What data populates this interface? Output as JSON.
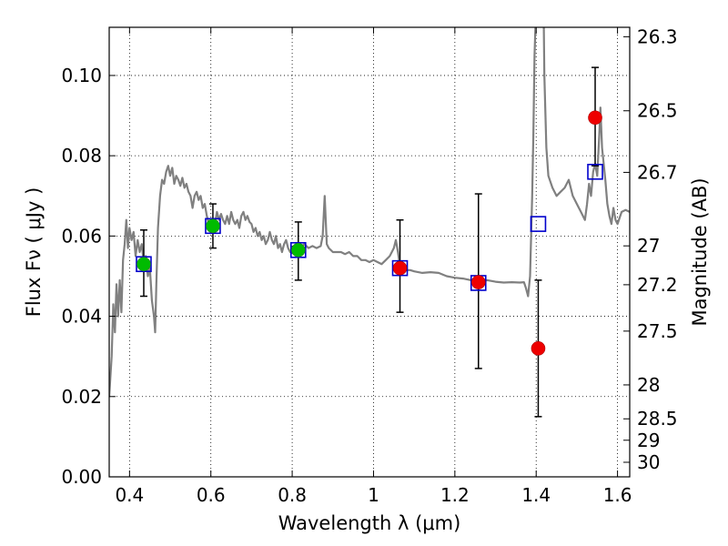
{
  "chart_data": {
    "type": "scatter",
    "xlabel": "Wavelength  λ (μm)",
    "ylabel": "Flux  Fν  ( μJy )",
    "y2label": "Magnitude (AB)",
    "xlim": [
      0.35,
      1.63
    ],
    "ylim": [
      0.0,
      0.112
    ],
    "grid": true,
    "x_ticks": [
      "0.4",
      "0.6",
      "0.8",
      "1",
      "1.2",
      "1.4",
      "1.6"
    ],
    "y_ticks": [
      "0.00",
      "0.02",
      "0.04",
      "0.06",
      "0.08",
      "0.10"
    ],
    "mag_ticks": [
      "26.3",
      "26.5",
      "26.7",
      "27",
      "27.2",
      "27.5",
      "28",
      "28.5",
      "29",
      "30"
    ],
    "model_spectrum": {
      "color": "#808080",
      "points": [
        [
          0.35,
          0.02
        ],
        [
          0.356,
          0.03
        ],
        [
          0.36,
          0.043
        ],
        [
          0.364,
          0.036
        ],
        [
          0.368,
          0.048
        ],
        [
          0.372,
          0.04
        ],
        [
          0.376,
          0.049
        ],
        [
          0.38,
          0.041
        ],
        [
          0.384,
          0.054
        ],
        [
          0.388,
          0.058
        ],
        [
          0.392,
          0.064
        ],
        [
          0.396,
          0.057
        ],
        [
          0.4,
          0.062
        ],
        [
          0.405,
          0.059
        ],
        [
          0.41,
          0.061
        ],
        [
          0.415,
          0.055
        ],
        [
          0.42,
          0.059
        ],
        [
          0.425,
          0.056
        ],
        [
          0.43,
          0.058
        ],
        [
          0.435,
          0.053
        ],
        [
          0.44,
          0.055
        ],
        [
          0.445,
          0.05
        ],
        [
          0.45,
          0.052
        ],
        [
          0.455,
          0.044
        ],
        [
          0.46,
          0.04
        ],
        [
          0.463,
          0.036
        ],
        [
          0.466,
          0.048
        ],
        [
          0.47,
          0.062
        ],
        [
          0.475,
          0.07
        ],
        [
          0.48,
          0.074
        ],
        [
          0.485,
          0.073
        ],
        [
          0.49,
          0.076
        ],
        [
          0.495,
          0.0775
        ],
        [
          0.5,
          0.075
        ],
        [
          0.505,
          0.077
        ],
        [
          0.51,
          0.073
        ],
        [
          0.515,
          0.075
        ],
        [
          0.52,
          0.074
        ],
        [
          0.525,
          0.0725
        ],
        [
          0.53,
          0.0745
        ],
        [
          0.535,
          0.072
        ],
        [
          0.54,
          0.073
        ],
        [
          0.545,
          0.071
        ],
        [
          0.55,
          0.07
        ],
        [
          0.555,
          0.067
        ],
        [
          0.56,
          0.07
        ],
        [
          0.565,
          0.071
        ],
        [
          0.57,
          0.069
        ],
        [
          0.575,
          0.07
        ],
        [
          0.58,
          0.067
        ],
        [
          0.585,
          0.068
        ],
        [
          0.59,
          0.065
        ],
        [
          0.595,
          0.063
        ],
        [
          0.6,
          0.062
        ],
        [
          0.605,
          0.064
        ],
        [
          0.61,
          0.063
        ],
        [
          0.615,
          0.066
        ],
        [
          0.62,
          0.064
        ],
        [
          0.625,
          0.0655
        ],
        [
          0.63,
          0.064
        ],
        [
          0.635,
          0.063
        ],
        [
          0.64,
          0.065
        ],
        [
          0.645,
          0.063
        ],
        [
          0.65,
          0.066
        ],
        [
          0.655,
          0.064
        ],
        [
          0.66,
          0.063
        ],
        [
          0.665,
          0.064
        ],
        [
          0.67,
          0.062
        ],
        [
          0.675,
          0.065
        ],
        [
          0.68,
          0.066
        ],
        [
          0.685,
          0.064
        ],
        [
          0.69,
          0.065
        ],
        [
          0.695,
          0.0635
        ],
        [
          0.7,
          0.063
        ],
        [
          0.705,
          0.061
        ],
        [
          0.71,
          0.062
        ],
        [
          0.715,
          0.06
        ],
        [
          0.72,
          0.061
        ],
        [
          0.725,
          0.059
        ],
        [
          0.73,
          0.06
        ],
        [
          0.735,
          0.058
        ],
        [
          0.74,
          0.059
        ],
        [
          0.745,
          0.061
        ],
        [
          0.75,
          0.059
        ],
        [
          0.755,
          0.058
        ],
        [
          0.76,
          0.06
        ],
        [
          0.765,
          0.057
        ],
        [
          0.77,
          0.058
        ],
        [
          0.775,
          0.056
        ],
        [
          0.78,
          0.058
        ],
        [
          0.785,
          0.059
        ],
        [
          0.79,
          0.057
        ],
        [
          0.795,
          0.056
        ],
        [
          0.8,
          0.057
        ],
        [
          0.81,
          0.058
        ],
        [
          0.82,
          0.057
        ],
        [
          0.83,
          0.058
        ],
        [
          0.84,
          0.057
        ],
        [
          0.85,
          0.0575
        ],
        [
          0.86,
          0.057
        ],
        [
          0.87,
          0.0575
        ],
        [
          0.875,
          0.06
        ],
        [
          0.88,
          0.07
        ],
        [
          0.885,
          0.058
        ],
        [
          0.89,
          0.057
        ],
        [
          0.9,
          0.056
        ],
        [
          0.91,
          0.056
        ],
        [
          0.92,
          0.056
        ],
        [
          0.93,
          0.0555
        ],
        [
          0.94,
          0.056
        ],
        [
          0.95,
          0.055
        ],
        [
          0.96,
          0.055
        ],
        [
          0.97,
          0.054
        ],
        [
          0.98,
          0.054
        ],
        [
          0.99,
          0.0535
        ],
        [
          1.0,
          0.054
        ],
        [
          1.01,
          0.0535
        ],
        [
          1.02,
          0.053
        ],
        [
          1.03,
          0.054
        ],
        [
          1.04,
          0.055
        ],
        [
          1.05,
          0.057
        ],
        [
          1.055,
          0.059
        ],
        [
          1.06,
          0.056
        ],
        [
          1.065,
          0.0525
        ],
        [
          1.07,
          0.0515
        ],
        [
          1.08,
          0.0515
        ],
        [
          1.09,
          0.0515
        ],
        [
          1.1,
          0.0512
        ],
        [
          1.12,
          0.0508
        ],
        [
          1.14,
          0.051
        ],
        [
          1.16,
          0.0508
        ],
        [
          1.18,
          0.05
        ],
        [
          1.2,
          0.0496
        ],
        [
          1.22,
          0.0494
        ],
        [
          1.24,
          0.049
        ],
        [
          1.26,
          0.0488
        ],
        [
          1.28,
          0.049
        ],
        [
          1.3,
          0.0486
        ],
        [
          1.32,
          0.0484
        ],
        [
          1.34,
          0.0485
        ],
        [
          1.36,
          0.0484
        ],
        [
          1.37,
          0.0485
        ],
        [
          1.375,
          0.047
        ],
        [
          1.38,
          0.045
        ],
        [
          1.385,
          0.05
        ],
        [
          1.39,
          0.07
        ],
        [
          1.393,
          0.085
        ],
        [
          1.396,
          0.105
        ],
        [
          1.4,
          0.118
        ],
        [
          1.41,
          0.118
        ],
        [
          1.418,
          0.118
        ],
        [
          1.42,
          0.1
        ],
        [
          1.425,
          0.082
        ],
        [
          1.43,
          0.075
        ],
        [
          1.44,
          0.072
        ],
        [
          1.45,
          0.07
        ],
        [
          1.46,
          0.071
        ],
        [
          1.47,
          0.072
        ],
        [
          1.48,
          0.074
        ],
        [
          1.49,
          0.07
        ],
        [
          1.5,
          0.068
        ],
        [
          1.51,
          0.066
        ],
        [
          1.52,
          0.064
        ],
        [
          1.525,
          0.068
        ],
        [
          1.53,
          0.073
        ],
        [
          1.535,
          0.07
        ],
        [
          1.54,
          0.076
        ],
        [
          1.545,
          0.078
        ],
        [
          1.55,
          0.075
        ],
        [
          1.555,
          0.085
        ],
        [
          1.558,
          0.092
        ],
        [
          1.562,
          0.082
        ],
        [
          1.57,
          0.074
        ],
        [
          1.575,
          0.068
        ],
        [
          1.58,
          0.065
        ],
        [
          1.585,
          0.063
        ],
        [
          1.59,
          0.067
        ],
        [
          1.595,
          0.064
        ],
        [
          1.6,
          0.063
        ],
        [
          1.61,
          0.066
        ],
        [
          1.62,
          0.0665
        ],
        [
          1.63,
          0.066
        ]
      ]
    },
    "model_bandpass_fluxes": {
      "marker": "open-square",
      "color": "#0000cc",
      "points": [
        [
          0.435,
          0.053
        ],
        [
          0.605,
          0.0625
        ],
        [
          0.815,
          0.0565
        ],
        [
          1.065,
          0.052
        ],
        [
          1.258,
          0.0483
        ],
        [
          1.405,
          0.063
        ],
        [
          1.545,
          0.076
        ]
      ]
    },
    "observed_fluxes_green": {
      "marker": "filled-circle",
      "color": "#00bb00",
      "points": [
        {
          "x": 0.435,
          "y": 0.053,
          "ylo": 0.045,
          "yhi": 0.0615
        },
        {
          "x": 0.605,
          "y": 0.0625,
          "ylo": 0.057,
          "yhi": 0.068
        },
        {
          "x": 0.815,
          "y": 0.0565,
          "ylo": 0.049,
          "yhi": 0.0635
        }
      ]
    },
    "observed_fluxes_red": {
      "marker": "filled-circle",
      "color": "#ee0000",
      "points": [
        {
          "x": 1.065,
          "y": 0.052,
          "ylo": 0.041,
          "yhi": 0.064
        },
        {
          "x": 1.258,
          "y": 0.0485,
          "ylo": 0.027,
          "yhi": 0.0705
        },
        {
          "x": 1.405,
          "y": 0.032,
          "ylo": 0.015,
          "yhi": 0.049
        },
        {
          "x": 1.545,
          "y": 0.0895,
          "ylo": 0.0775,
          "yhi": 0.102
        }
      ]
    }
  }
}
